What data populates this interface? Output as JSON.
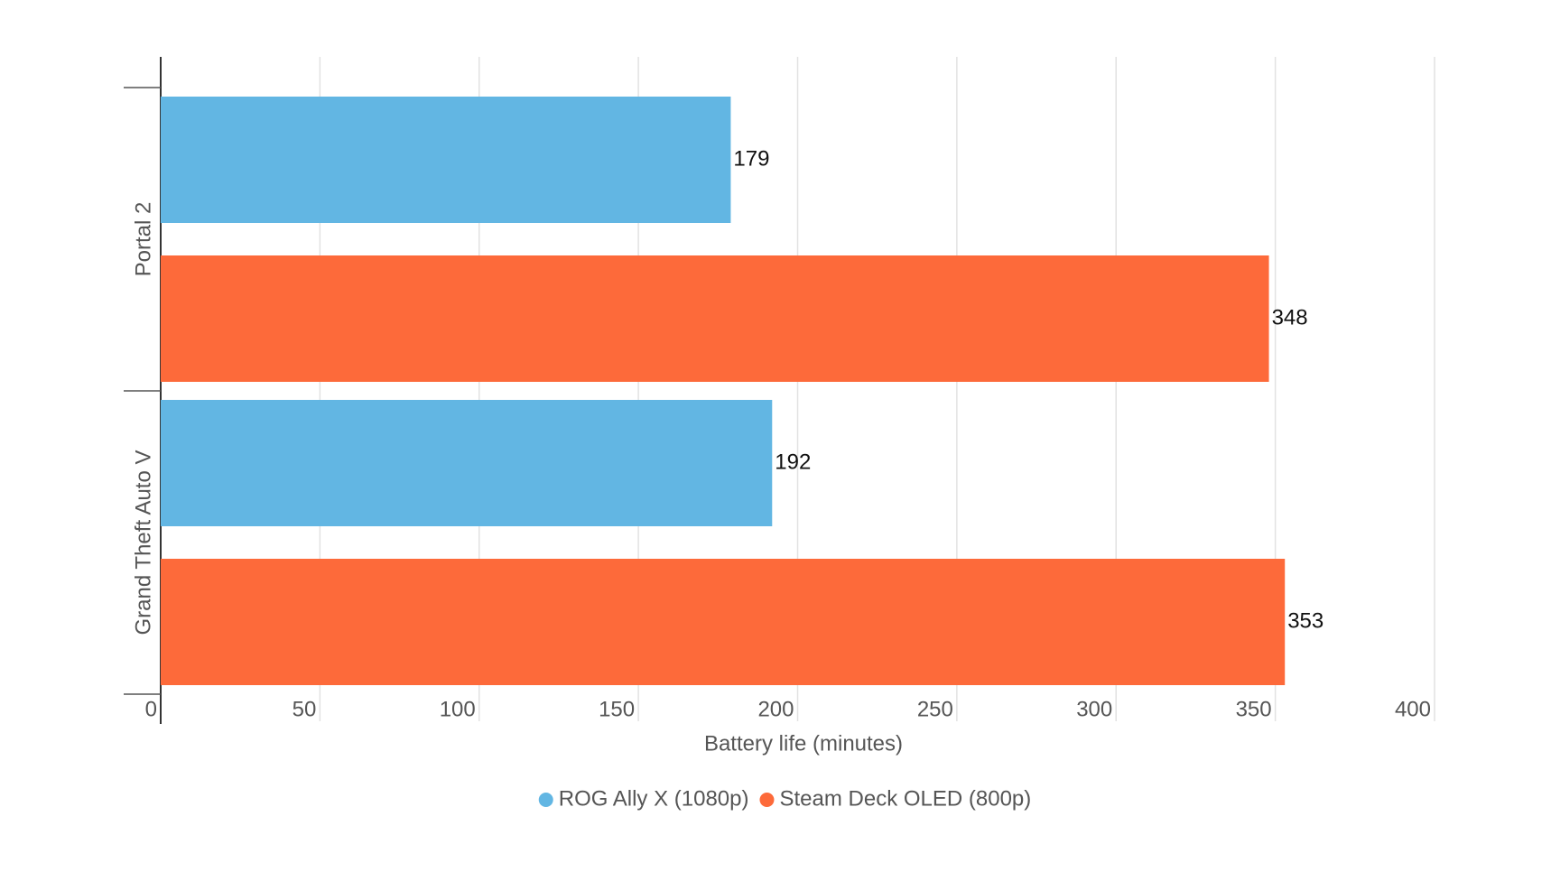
{
  "chart_data": {
    "type": "hbar",
    "categories": [
      "Portal 2",
      "Grand Theft Auto V"
    ],
    "series": [
      {
        "name": "ROG Ally X (1080p)",
        "color": "#62b6e3",
        "values": [
          179,
          192
        ]
      },
      {
        "name": "Steam Deck OLED (800p)",
        "color": "#fd6a3a",
        "values": [
          348,
          353
        ]
      }
    ],
    "xlabel": "Battery life (minutes)",
    "xlim": [
      0,
      400
    ],
    "xticks": [
      0,
      50,
      100,
      150,
      200,
      250,
      300,
      350,
      400
    ],
    "grid": true,
    "legend": "bottom"
  }
}
